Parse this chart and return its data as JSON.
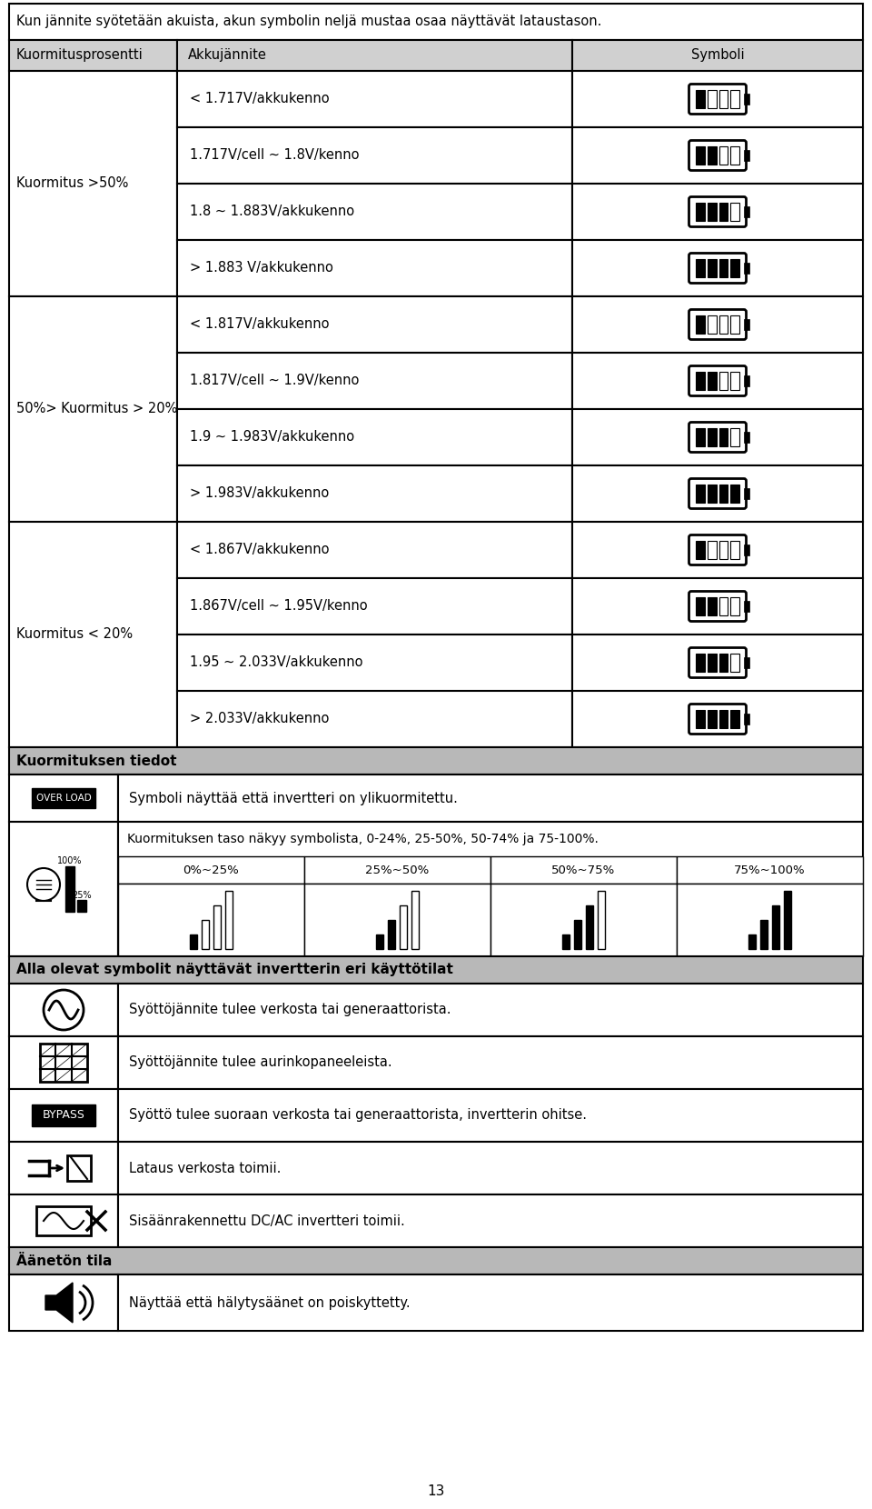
{
  "title_text": "Kun jännite syötetään akuista, akun symbolin neljä mustaa osaa näyttävät lataustason.",
  "header": [
    "Kuormitusprosentti",
    "Akkujännite",
    "Symboli"
  ],
  "rows": [
    {
      "group": "Kuormitus >50%",
      "group_rows": 4,
      "items": [
        {
          "voltage": "< 1.717V/akkukenno",
          "fill": 0
        },
        {
          "voltage": "1.717V/cell ~ 1.8V/kenno",
          "fill": 1
        },
        {
          "voltage": "1.8 ~ 1.883V/akkukenno",
          "fill": 2
        },
        {
          "voltage": "> 1.883 V/akkukenno",
          "fill": 3
        }
      ]
    },
    {
      "group": "50%> Kuormitus > 20%",
      "group_rows": 4,
      "items": [
        {
          "voltage": "< 1.817V/akkukenno",
          "fill": 0
        },
        {
          "voltage": "1.817V/cell ~ 1.9V/kenno",
          "fill": 1
        },
        {
          "voltage": "1.9 ~ 1.983V/akkukenno",
          "fill": 2
        },
        {
          "voltage": "> 1.983V/akkukenno",
          "fill": 3
        }
      ]
    },
    {
      "group": "Kuormitus < 20%",
      "group_rows": 4,
      "items": [
        {
          "voltage": "< 1.867V/akkukenno",
          "fill": 0
        },
        {
          "voltage": "1.867V/cell ~ 1.95V/kenno",
          "fill": 1
        },
        {
          "voltage": "1.95 ~ 2.033V/akkukenno",
          "fill": 2
        },
        {
          "voltage": "> 2.033V/akkukenno",
          "fill": 3
        }
      ]
    }
  ],
  "section2_title": "Kuormituksen tiedot",
  "overload_text": "Symboli näyttää että invertteri on ylikuormitettu.",
  "load_text": "Kuormituksen taso näkyy symbolista, 0-24%, 25-50%, 50-74% ja 75-100%.",
  "load_cols": [
    "0%~25%",
    "25%~50%",
    "50%~75%",
    "75%~100%"
  ],
  "section3_title": "Alla olevat symbolit näyttävät invertterin eri käyttötilat",
  "section3_rows": [
    {
      "text": "Syöttöjännite tulee verkosta tai generaattorista."
    },
    {
      "text": "Syöttöjännite tulee aurinkopaneeleista."
    },
    {
      "text": "Syöttö tulee suoraan verkosta tai generaattorista, invertterin ohitse."
    },
    {
      "text": "Lataus verkosta toimii."
    },
    {
      "text": "Sisäänrakennettu DC/AC invertteri toimii."
    }
  ],
  "section4_title": "Äänetön tila",
  "section4_text": "Näyttää että hälytysäänet on poiskyttetty.",
  "page_num": "13",
  "bg_color": "#ffffff",
  "header_bg": "#d0d0d0",
  "section_header_bg": "#b8b8b8",
  "border_color": "#000000"
}
